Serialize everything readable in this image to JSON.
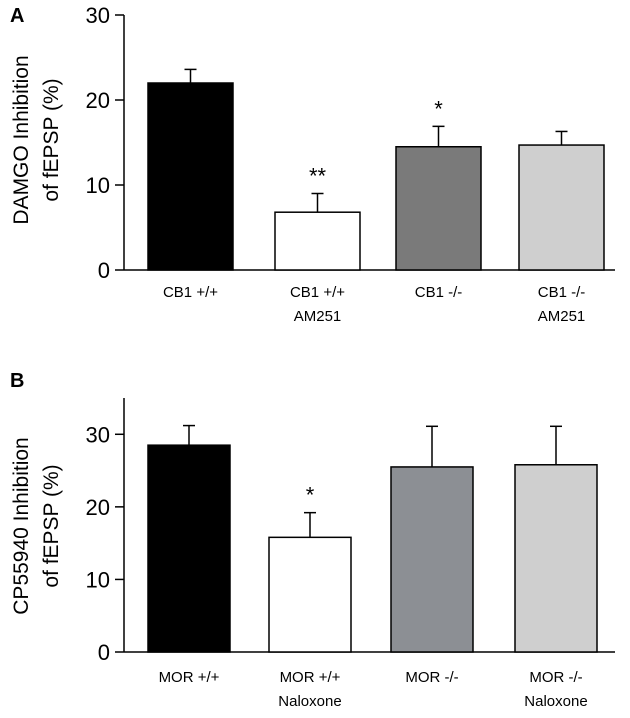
{
  "chart_data": [
    {
      "panel": "A",
      "type": "bar",
      "ylabel_lines": [
        "DAMGO Inhibition",
        "of fEPSP (%)"
      ],
      "ylim": [
        0,
        30
      ],
      "yticks": [
        0,
        10,
        20,
        30
      ],
      "categories": [
        [
          "CB1 +/+"
        ],
        [
          "CB1 +/+",
          "AM251"
        ],
        [
          "CB1 -/-"
        ],
        [
          "CB1 -/-",
          "AM251"
        ]
      ],
      "values": [
        22,
        6.8,
        14.5,
        14.7
      ],
      "errors": [
        1.6,
        2.2,
        2.4,
        1.6
      ],
      "significance": [
        "",
        "**",
        "*",
        ""
      ],
      "colors": [
        "#000000",
        "#ffffff",
        "#7a7a7a",
        "#cfcfcf"
      ]
    },
    {
      "panel": "B",
      "type": "bar",
      "ylabel_lines": [
        "CP55940 Inhibition",
        "of fEPSP (%)"
      ],
      "ylim": [
        0,
        35
      ],
      "yticks": [
        0,
        10,
        20,
        30
      ],
      "categories": [
        [
          "MOR +/+"
        ],
        [
          "MOR +/+",
          "Naloxone"
        ],
        [
          "MOR -/-"
        ],
        [
          "MOR -/-",
          "Naloxone"
        ]
      ],
      "values": [
        28.5,
        15.8,
        25.5,
        25.8
      ],
      "errors": [
        2.7,
        3.4,
        5.6,
        5.3
      ],
      "significance": [
        "",
        "*",
        "",
        ""
      ],
      "colors": [
        "#000000",
        "#ffffff",
        "#8c8f94",
        "#cfcfcf"
      ]
    }
  ]
}
